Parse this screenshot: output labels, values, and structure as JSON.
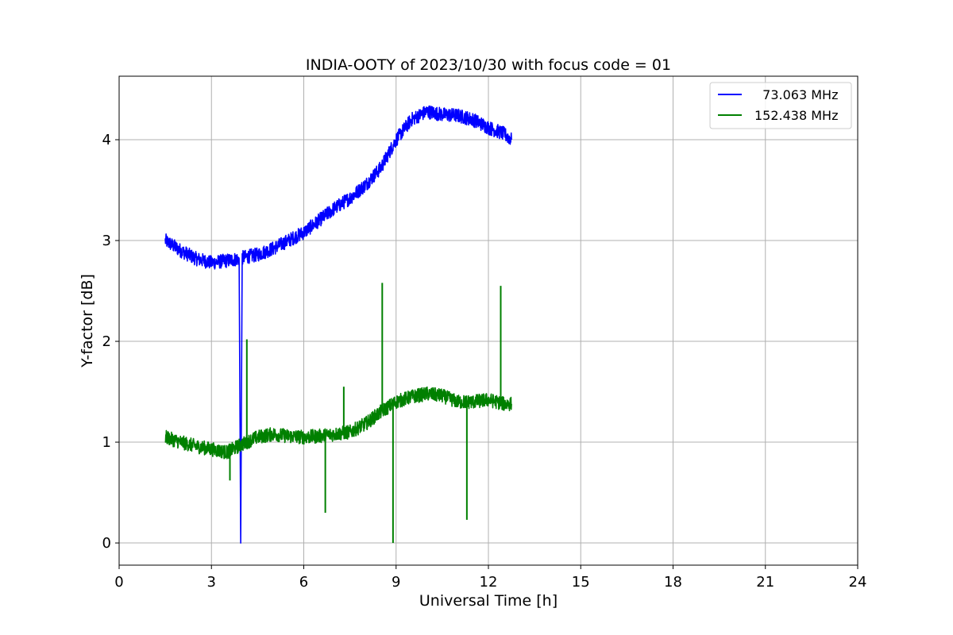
{
  "chart_data": {
    "type": "line",
    "title": "INDIA-OOTY of 2023/10/30 with focus code = 01",
    "xlabel": "Universal Time [h]",
    "ylabel": "Y-factor [dB]",
    "xlim": [
      0,
      24
    ],
    "ylim": [
      -0.22,
      4.63
    ],
    "xticks": [
      0,
      3,
      6,
      9,
      12,
      15,
      18,
      21,
      24
    ],
    "yticks": [
      0,
      1,
      2,
      3,
      4
    ],
    "grid": true,
    "legend_position": "upper right",
    "series": [
      {
        "name": "  73.063 MHz",
        "color": "#0000ff",
        "x": [
          1.5,
          1.75,
          2.0,
          2.5,
          3.0,
          3.5,
          3.9,
          3.95,
          4.0,
          4.5,
          5.0,
          5.5,
          6.0,
          6.5,
          7.0,
          7.5,
          8.0,
          8.5,
          9.0,
          9.5,
          10.0,
          10.5,
          11.0,
          11.5,
          12.0,
          12.5,
          12.75
        ],
        "y": [
          3.0,
          2.95,
          2.9,
          2.82,
          2.78,
          2.8,
          2.82,
          0.0,
          2.83,
          2.86,
          2.92,
          3.0,
          3.08,
          3.2,
          3.32,
          3.42,
          3.55,
          3.72,
          4.0,
          4.2,
          4.28,
          4.25,
          4.24,
          4.2,
          4.12,
          4.06,
          4.0
        ],
        "noise": 0.07
      },
      {
        "name": "152.438 MHz",
        "color": "#008000",
        "x": [
          1.5,
          2.0,
          2.5,
          3.0,
          3.5,
          4.0,
          4.5,
          5.0,
          5.5,
          6.0,
          6.5,
          7.0,
          7.5,
          8.0,
          8.5,
          9.0,
          9.5,
          10.0,
          10.5,
          11.0,
          11.5,
          12.0,
          12.5,
          12.75
        ],
        "y": [
          1.05,
          1.0,
          0.96,
          0.93,
          0.9,
          0.98,
          1.05,
          1.08,
          1.06,
          1.05,
          1.06,
          1.08,
          1.1,
          1.18,
          1.3,
          1.4,
          1.45,
          1.48,
          1.46,
          1.4,
          1.4,
          1.42,
          1.38,
          1.38
        ],
        "noise": 0.07,
        "spikes": [
          {
            "x": 3.6,
            "y": 0.62
          },
          {
            "x": 4.15,
            "y": 2.02
          },
          {
            "x": 6.7,
            "y": 0.3
          },
          {
            "x": 7.3,
            "y": 1.55
          },
          {
            "x": 8.55,
            "y": 2.58
          },
          {
            "x": 8.9,
            "y": 0.0
          },
          {
            "x": 11.3,
            "y": 0.23
          },
          {
            "x": 12.4,
            "y": 2.55
          }
        ]
      }
    ]
  }
}
